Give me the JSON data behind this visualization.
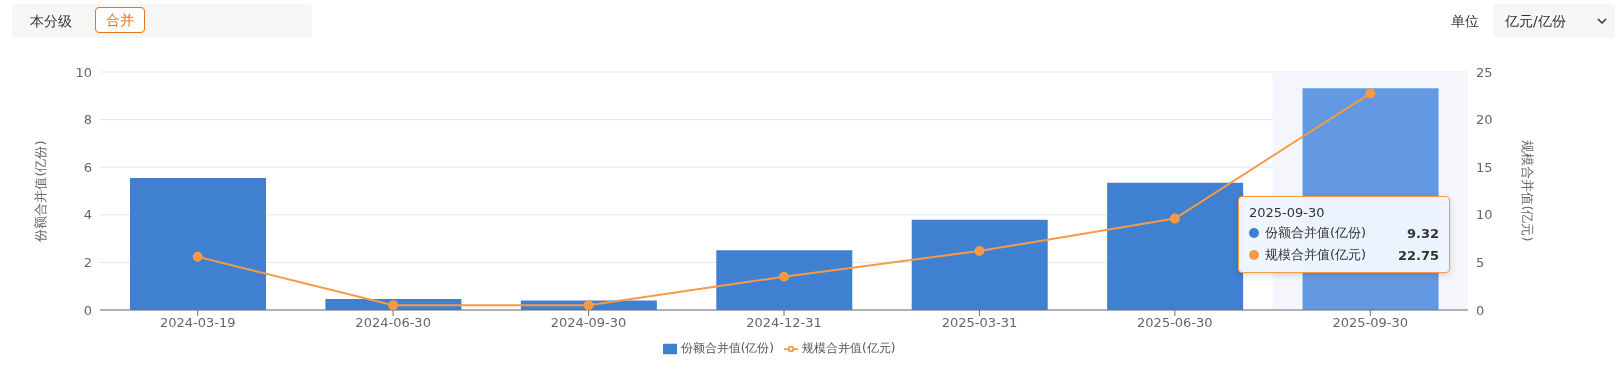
{
  "chart_data": {
    "type": "bar",
    "categories": [
      "2024-03-19",
      "2024-06-30",
      "2024-09-30",
      "2024-12-31",
      "2025-03-31",
      "2025-06-30",
      "2025-09-30"
    ],
    "series": [
      {
        "name": "份额合并值(亿份)",
        "color": "#4080d0",
        "colors": [
          "#4080d0",
          "#4080d0",
          "#4080d0",
          "#4080d0",
          "#4080d0",
          "#4080d0",
          "#6399e3"
        ],
        "values": [
          5.55,
          0.46,
          0.4,
          2.51,
          3.79,
          5.35,
          9.32
        ]
      },
      {
        "name": "规模合并值(亿元)",
        "type": "line",
        "axis": "y2",
        "color": "#f79a45",
        "values": [
          5.6,
          0.5,
          0.5,
          3.5,
          6.2,
          9.6,
          22.75
        ]
      }
    ],
    "ylabel": "份额合并值(亿份)",
    "y2label": "规模合并值(亿元)",
    "ylim": [
      0,
      10
    ],
    "yticks": [
      0,
      2,
      4,
      6,
      8,
      10
    ],
    "y2lim": [
      0,
      25
    ],
    "y2ticks": [
      0,
      5,
      10,
      15,
      20,
      25
    ],
    "bands": [
      {
        "axis": "x",
        "from": "2025-09-30",
        "to": "2025-09-30",
        "color": "#f4f6fb"
      }
    ],
    "annotations": [
      "本分级",
      "合并",
      "单位",
      "亿元/亿份",
      "2025-09-30",
      "份额合并值(亿份)",
      "9.32",
      "规模合并值(亿元)",
      "22.75"
    ],
    "grid": "y",
    "legend": "bottom",
    "marker": "circle",
    "line_style": "solid"
  }
}
